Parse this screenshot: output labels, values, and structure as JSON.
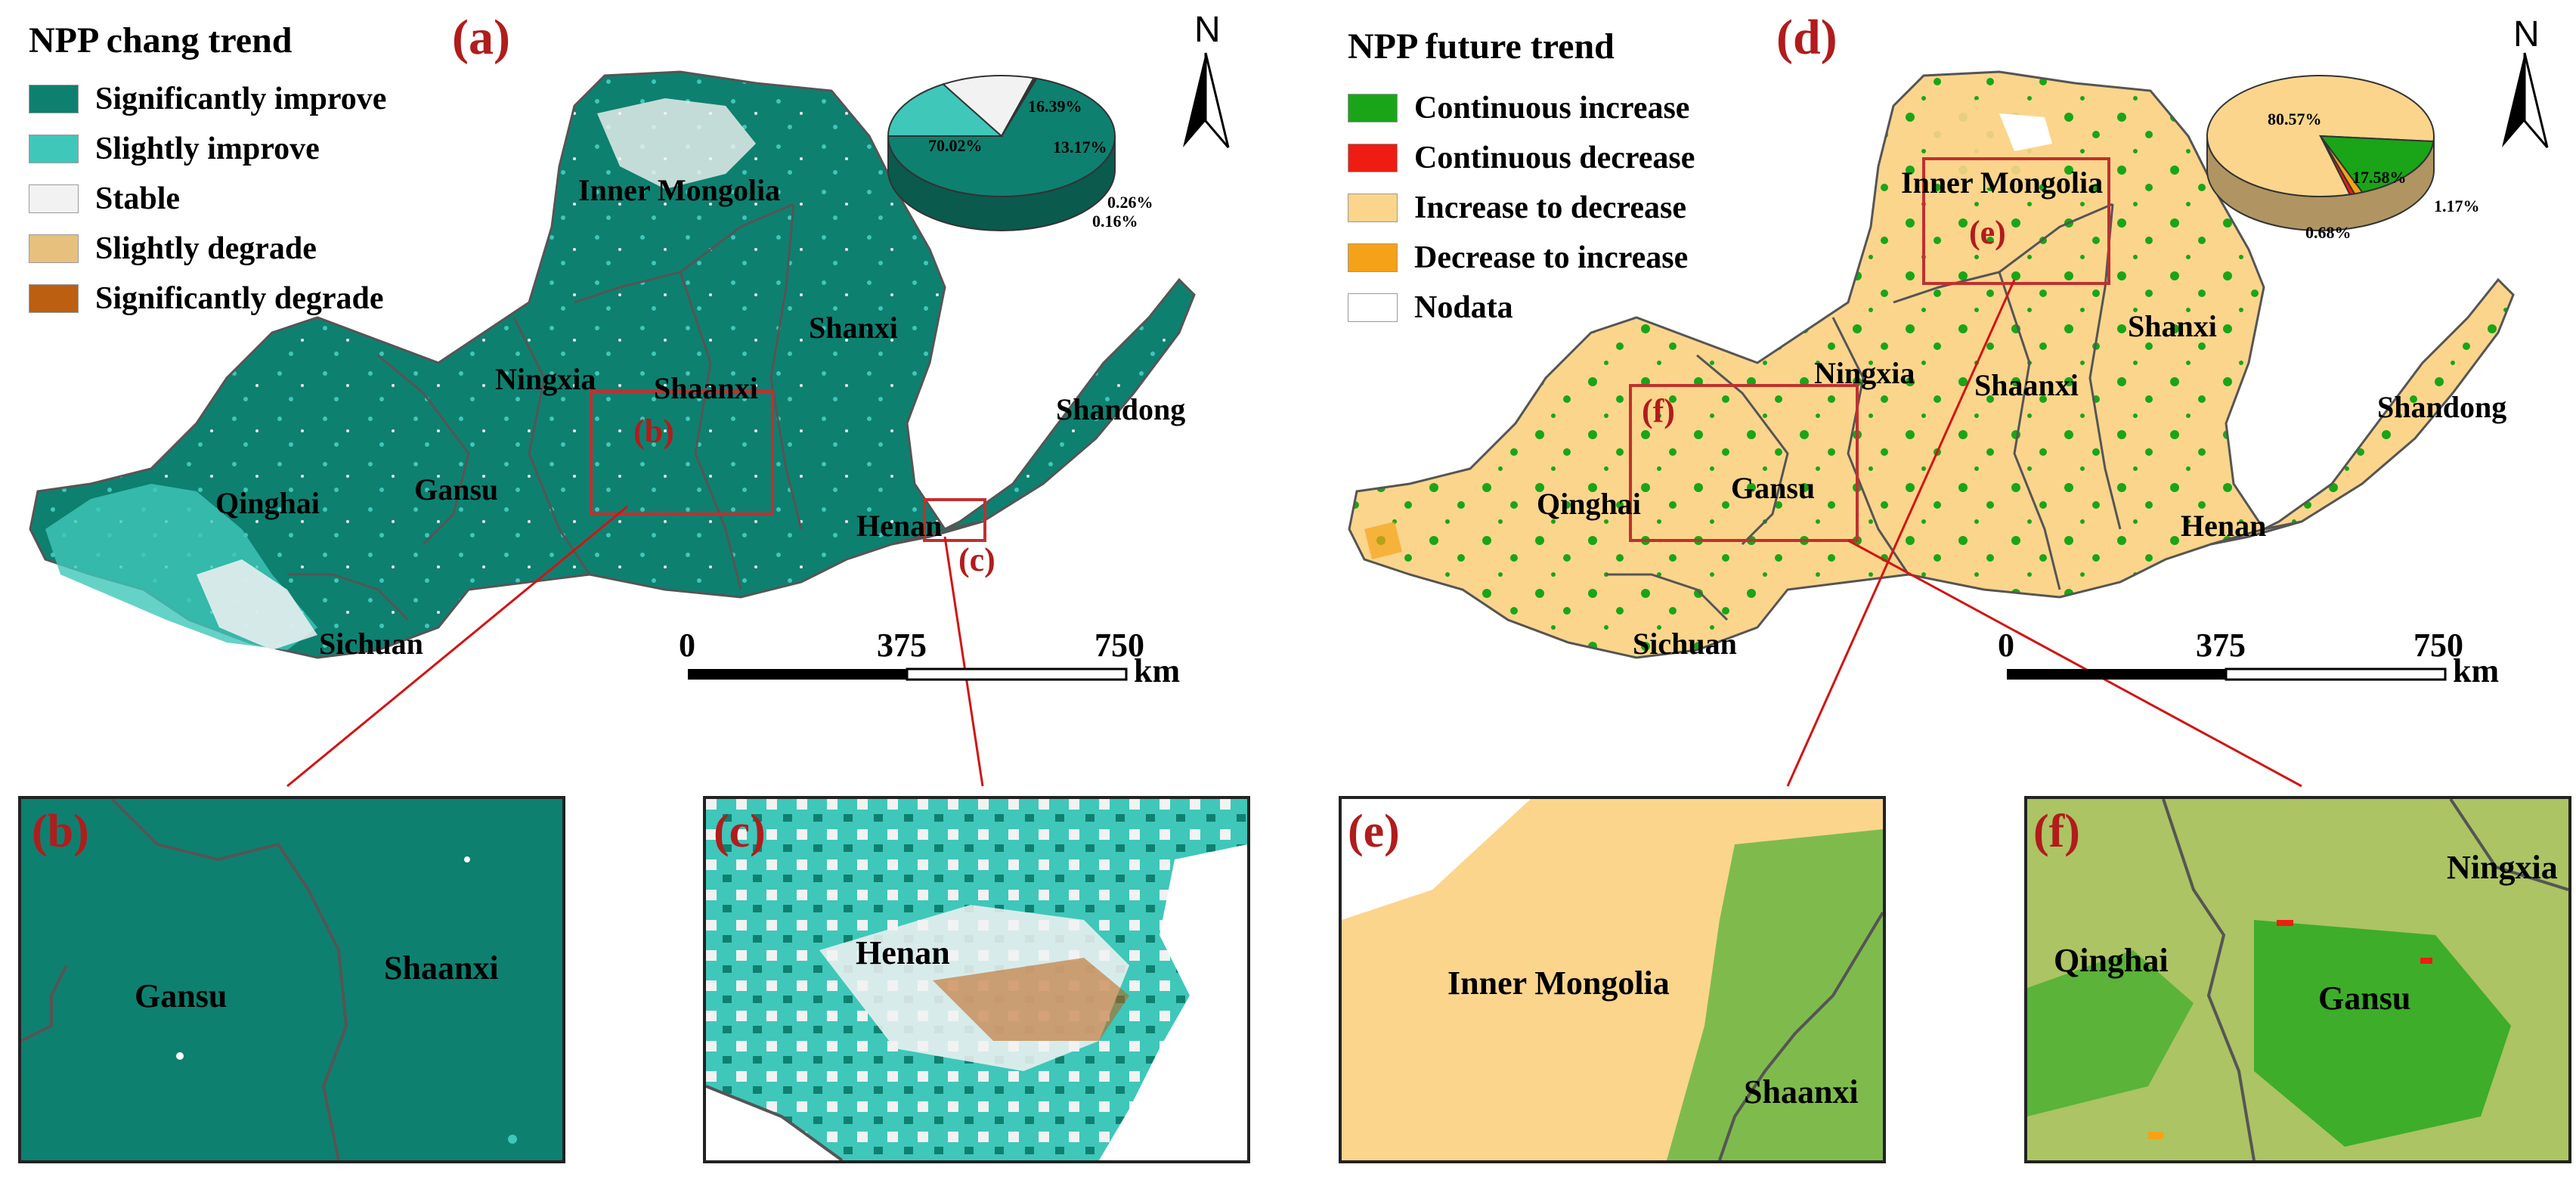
{
  "left": {
    "legend_title": "NPP chang trend",
    "panel_label": "(a)",
    "legend": [
      {
        "label": "Significantly improve",
        "color": "#0e8070"
      },
      {
        "label": "Slightly improve",
        "color": "#3fc7ba"
      },
      {
        "label": "Stable",
        "color": "#f2f2f2"
      },
      {
        "label": "Slightly degrade",
        "color": "#e8c07d"
      },
      {
        "label": "Significantly degrade",
        "color": "#bd5f11"
      }
    ],
    "pie": [
      {
        "label": "70.02%",
        "value": 70.02,
        "color": "#0e8070"
      },
      {
        "label": "16.39%",
        "value": 16.39,
        "color": "#3fc7ba"
      },
      {
        "label": "13.17%",
        "value": 13.17,
        "color": "#f2f2f2"
      },
      {
        "label": "0.26%",
        "value": 0.26,
        "color": "#e8c07d"
      },
      {
        "label": "0.16%",
        "value": 0.16,
        "color": "#bd5f11"
      }
    ],
    "regions": [
      "Inner Mongolia",
      "Shanxi",
      "Ningxia",
      "Shaanxi",
      "Shandong",
      "Qinghai",
      "Gansu",
      "Henan",
      "Sichuan"
    ],
    "box_labels": {
      "b": "(b)",
      "c": "(c)"
    },
    "scale": {
      "t0": "0",
      "t1": "375",
      "t2": "750",
      "unit": "km"
    }
  },
  "right": {
    "legend_title": "NPP future trend",
    "panel_label": "(d)",
    "legend": [
      {
        "label": "Continuous increase",
        "color": "#19a517"
      },
      {
        "label": "Continuous decrease",
        "color": "#ee1c12"
      },
      {
        "label": "Increase to decrease",
        "color": "#fbd58c"
      },
      {
        "label": "Decrease to increase",
        "color": "#f5a218"
      },
      {
        "label": "Nodata",
        "color": "#ffffff"
      }
    ],
    "pie": [
      {
        "label": "80.57%",
        "value": 80.57,
        "color": "#fbd58c"
      },
      {
        "label": "17.58%",
        "value": 17.58,
        "color": "#19a517"
      },
      {
        "label": "1.17%",
        "value": 1.17,
        "color": "#f5a218"
      },
      {
        "label": "0.68%",
        "value": 0.68,
        "color": "#ee1c12"
      }
    ],
    "regions": [
      "Inner Mongolia",
      "Shanxi",
      "Ningxia",
      "Shaanxi",
      "Shandong",
      "Qinghai",
      "Gansu",
      "Henan",
      "Sichuan"
    ],
    "box_labels": {
      "e": "(e)",
      "f": "(f)"
    },
    "scale": {
      "t0": "0",
      "t1": "375",
      "t2": "750",
      "unit": "km"
    }
  },
  "north": "N",
  "insets": {
    "b": {
      "label": "(b)",
      "places": [
        "Gansu",
        "Shaanxi"
      ]
    },
    "c": {
      "label": "(c)",
      "places": [
        "Henan"
      ]
    },
    "e": {
      "label": "(e)",
      "places": [
        "Inner Mongolia",
        "Shaanxi"
      ]
    },
    "f": {
      "label": "(f)",
      "places": [
        "Qinghai",
        "Gansu",
        "Ningxia"
      ]
    }
  }
}
